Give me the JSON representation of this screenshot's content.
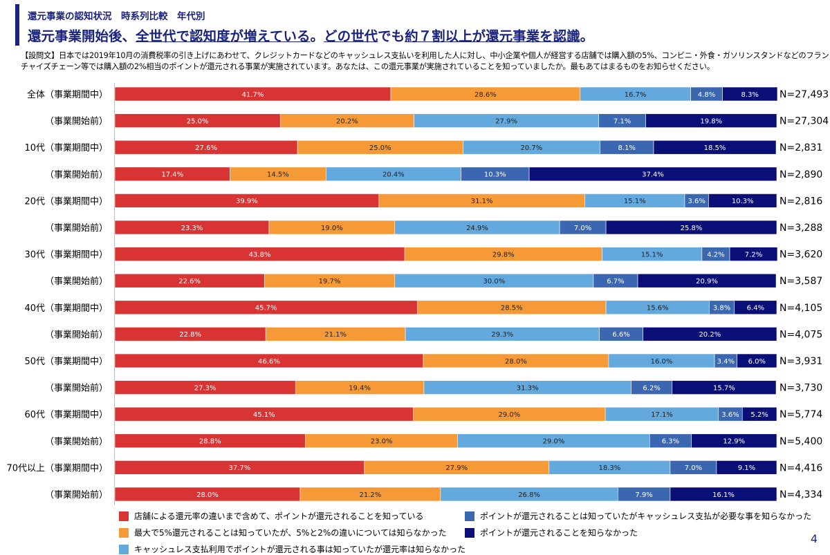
{
  "header": {
    "kicker": "還元事業の認知状況　時系列比較　年代別",
    "headline_parts": [
      "還元事業開始後、",
      "全世代で認知度が増えている",
      "。",
      "どの世代",
      "でも",
      "約７割以上が還元事業を認識",
      "。"
    ],
    "question": "【設問文】日本では2019年10月の消費税率の引き上げにあわせて、クレジットカードなどのキャッシュレス支払いを利用した人に対し、中小企業や個人が経営する店舗では購入額の5%、コンビニ・外食・ガソリンスタンドなどのフランチャイズチェーン等では購入額の2%相当のポイントが還元される事業が実施されています。あなたは、この還元事業が実施されていることを知っていましたか。最もあてはまるものをお知らせください。"
  },
  "page_number": "4",
  "chart_data": {
    "type": "bar",
    "orientation": "horizontal",
    "stacked": true,
    "normalized": true,
    "categories": [
      "全体（事業期間中）",
      "（事業開始前）",
      "10代（事業期間中）",
      "（事業開始前）",
      "20代（事業期間中）",
      "（事業開始前）",
      "30代（事業期間中）",
      "（事業開始前）",
      "40代（事業期間中）",
      "（事業開始前）",
      "50代（事業期間中）",
      "（事業開始前）",
      "60代（事業期間中）",
      "（事業開始前）",
      "70代以上（事業期間中）",
      "（事業開始前）"
    ],
    "sample_sizes": [
      "N=27,493",
      "N=27,304",
      "N=2,831",
      "N=2,890",
      "N=2,816",
      "N=3,288",
      "N=3,620",
      "N=3,587",
      "N=4,105",
      "N=4,075",
      "N=3,931",
      "N=3,730",
      "N=5,774",
      "N=5,400",
      "N=4,416",
      "N=4,334"
    ],
    "series": [
      {
        "name": "店舗による還元率の違いまで含めて、ポイントが還元されることを知っている",
        "color": "#d93434",
        "label_color": "#ffffff",
        "values": [
          41.7,
          25.0,
          27.6,
          17.4,
          39.9,
          23.3,
          43.8,
          22.6,
          45.7,
          22.8,
          46.6,
          27.3,
          45.1,
          28.8,
          37.7,
          28.0
        ]
      },
      {
        "name": "最大で5%還元されることは知っていたが、5%と2%の違いについては知らなかった",
        "color": "#f59a36",
        "label_color": "#222222",
        "values": [
          28.6,
          20.2,
          25.0,
          14.5,
          31.1,
          19.0,
          29.8,
          19.7,
          28.5,
          21.1,
          28.0,
          19.4,
          29.0,
          23.0,
          27.9,
          21.2
        ]
      },
      {
        "name": "キャッシュレス支払利用でポイントが還元される事は知っていたが還元率は知らなかった",
        "color": "#63a9dd",
        "label_color": "#222222",
        "values": [
          16.7,
          27.9,
          20.7,
          20.4,
          15.1,
          24.9,
          15.1,
          30.0,
          15.6,
          29.3,
          16.0,
          31.3,
          17.1,
          29.0,
          18.3,
          26.8
        ]
      },
      {
        "name": "ポイントが還元されることは知っていたがキャッシュレス支払が必要な事を知らなかった",
        "color": "#3b66b0",
        "label_color": "#ffffff",
        "values": [
          4.8,
          7.1,
          8.1,
          10.3,
          3.6,
          7.0,
          4.2,
          6.7,
          3.8,
          6.6,
          3.4,
          6.2,
          3.6,
          6.3,
          7.0,
          7.9
        ]
      },
      {
        "name": "ポイントが還元されることを知らなかった",
        "color": "#0a0f78",
        "label_color": "#ffffff",
        "values": [
          8.3,
          19.8,
          18.5,
          37.4,
          10.3,
          25.8,
          7.2,
          20.9,
          6.4,
          20.2,
          6.0,
          15.7,
          5.2,
          12.9,
          9.1,
          16.1
        ]
      }
    ],
    "value_format": "%.1f%",
    "legend_position": "bottom",
    "xlim": [
      0,
      100
    ]
  }
}
